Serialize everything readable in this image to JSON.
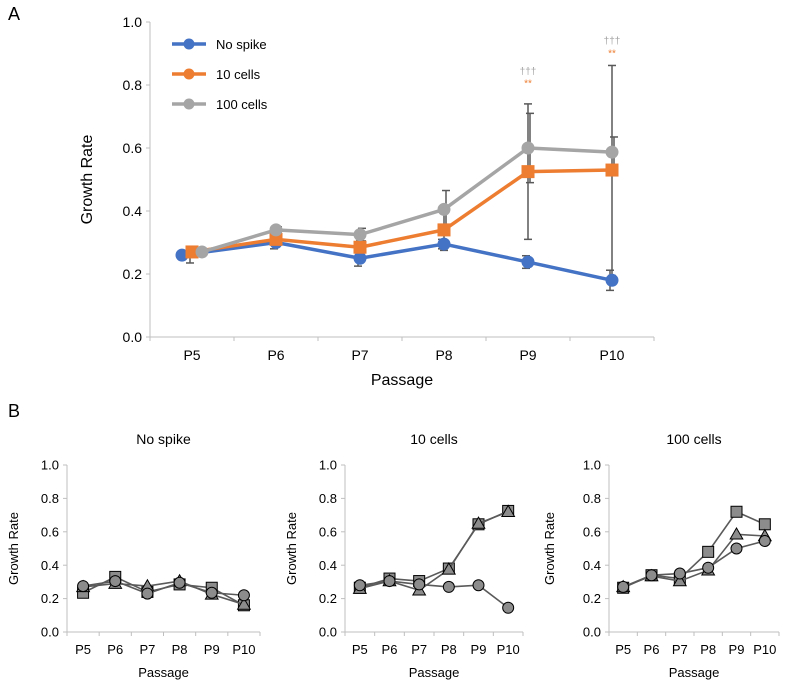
{
  "panel_labels": {
    "a": "A",
    "b": "B"
  },
  "colors": {
    "no_spike": "#4472C4",
    "cells10": "#ED7D31",
    "cells100": "#A5A5A5",
    "errorbar": "#595959",
    "small_line": "#5a5a5a",
    "small_marker": "#8c8c8c",
    "axis": "#bfbfbf"
  },
  "chart_data": [
    {
      "type": "line",
      "panel": "A",
      "title": "",
      "xlabel": "Passage",
      "ylabel": "Growth Rate",
      "ylim": [
        0,
        1.0
      ],
      "yticks": [
        "0.0",
        "0.2",
        "0.4",
        "0.6",
        "0.8",
        "1.0"
      ],
      "categories": [
        "P5",
        "P6",
        "P7",
        "P8",
        "P9",
        "P10"
      ],
      "legend_position": "top-left",
      "series": [
        {
          "name": "No spike",
          "color_key": "no_spike",
          "marker": "circle",
          "values": [
            0.26,
            0.3,
            0.25,
            0.295,
            0.238,
            0.18
          ],
          "err_low": [
            0.235,
            0.28,
            0.225,
            0.28,
            0.218,
            0.148
          ],
          "err_high": [
            0.285,
            0.32,
            0.275,
            0.31,
            0.258,
            0.212
          ]
        },
        {
          "name": "10 cells",
          "color_key": "cells10",
          "marker": "square",
          "values": [
            0.27,
            0.31,
            0.285,
            0.34,
            0.525,
            0.53
          ],
          "err_low": null,
          "err_high": null
        },
        {
          "name": "100 cells",
          "color_key": "cells100",
          "marker": "circle",
          "values": [
            0.27,
            0.34,
            0.325,
            0.405,
            0.6,
            0.587
          ],
          "err_low": [
            0.265,
            0.33,
            0.305,
            0.33,
            0.49,
            0.535
          ],
          "err_high": [
            0.275,
            0.35,
            0.345,
            0.465,
            0.71,
            0.635
          ]
        }
      ],
      "extra_error_bars": [
        {
          "category": "P7",
          "low": 0.27,
          "high": 0.305
        },
        {
          "category": "P8",
          "low": 0.275,
          "high": 0.405
        },
        {
          "category": "P9",
          "low": 0.31,
          "high": 0.74
        },
        {
          "category": "P10",
          "low": 0.195,
          "high": 0.862
        }
      ],
      "annotations": [
        {
          "category": "P9",
          "text": "†††",
          "color_key": "cells100",
          "y": 0.833
        },
        {
          "category": "P9",
          "text": "**",
          "color_key": "cells10",
          "y": 0.795
        },
        {
          "category": "P10",
          "text": "†††",
          "color_key": "cells100",
          "y": 0.93
        },
        {
          "category": "P10",
          "text": "**",
          "color_key": "cells10",
          "y": 0.89
        }
      ]
    },
    {
      "type": "line",
      "panel": "B",
      "title": "No spike",
      "xlabel": "Passage",
      "ylabel": "Growth Rate",
      "ylim": [
        0,
        1.0
      ],
      "yticks": [
        "0.0",
        "0.2",
        "0.4",
        "0.6",
        "0.8",
        "1.0"
      ],
      "categories": [
        "P5",
        "P6",
        "P7",
        "P8",
        "P9",
        "P10"
      ],
      "series": [
        {
          "name": "replicate-square",
          "marker": "square",
          "values": [
            0.235,
            0.33,
            0.24,
            0.285,
            0.265,
            0.16
          ]
        },
        {
          "name": "replicate-triangle",
          "marker": "triangle",
          "values": [
            0.27,
            0.29,
            0.275,
            0.305,
            0.225,
            0.165
          ]
        },
        {
          "name": "replicate-circle",
          "marker": "circle",
          "values": [
            0.275,
            0.305,
            0.23,
            0.295,
            0.235,
            0.22
          ]
        }
      ]
    },
    {
      "type": "line",
      "panel": "B",
      "title": "10 cells",
      "xlabel": "Passage",
      "ylabel": "Growth Rate",
      "ylim": [
        0,
        1.0
      ],
      "yticks": [
        "0.0",
        "0.2",
        "0.4",
        "0.6",
        "0.8",
        "1.0"
      ],
      "categories": [
        "P5",
        "P6",
        "P7",
        "P8",
        "P9",
        "P10"
      ],
      "series": [
        {
          "name": "replicate-square",
          "marker": "square",
          "values": [
            0.265,
            0.32,
            0.305,
            0.38,
            0.645,
            0.725
          ]
        },
        {
          "name": "replicate-triangle",
          "marker": "triangle",
          "values": [
            0.26,
            0.305,
            0.25,
            0.375,
            0.65,
            0.72
          ]
        },
        {
          "name": "replicate-circle",
          "marker": "circle",
          "values": [
            0.28,
            0.305,
            0.285,
            0.27,
            0.28,
            0.145
          ]
        }
      ]
    },
    {
      "type": "line",
      "panel": "B",
      "title": "100 cells",
      "xlabel": "Passage",
      "ylabel": "Growth Rate",
      "ylim": [
        0,
        1.0
      ],
      "yticks": [
        "0.0",
        "0.2",
        "0.4",
        "0.6",
        "0.8",
        "1.0"
      ],
      "categories": [
        "P5",
        "P6",
        "P7",
        "P8",
        "P9",
        "P10"
      ],
      "series": [
        {
          "name": "replicate-square",
          "marker": "square",
          "values": [
            0.265,
            0.34,
            0.32,
            0.48,
            0.72,
            0.645
          ]
        },
        {
          "name": "replicate-triangle",
          "marker": "triangle",
          "values": [
            0.27,
            0.335,
            0.305,
            0.37,
            0.585,
            0.575
          ]
        },
        {
          "name": "replicate-circle",
          "marker": "circle",
          "values": [
            0.27,
            0.34,
            0.35,
            0.385,
            0.5,
            0.545
          ]
        }
      ]
    }
  ]
}
